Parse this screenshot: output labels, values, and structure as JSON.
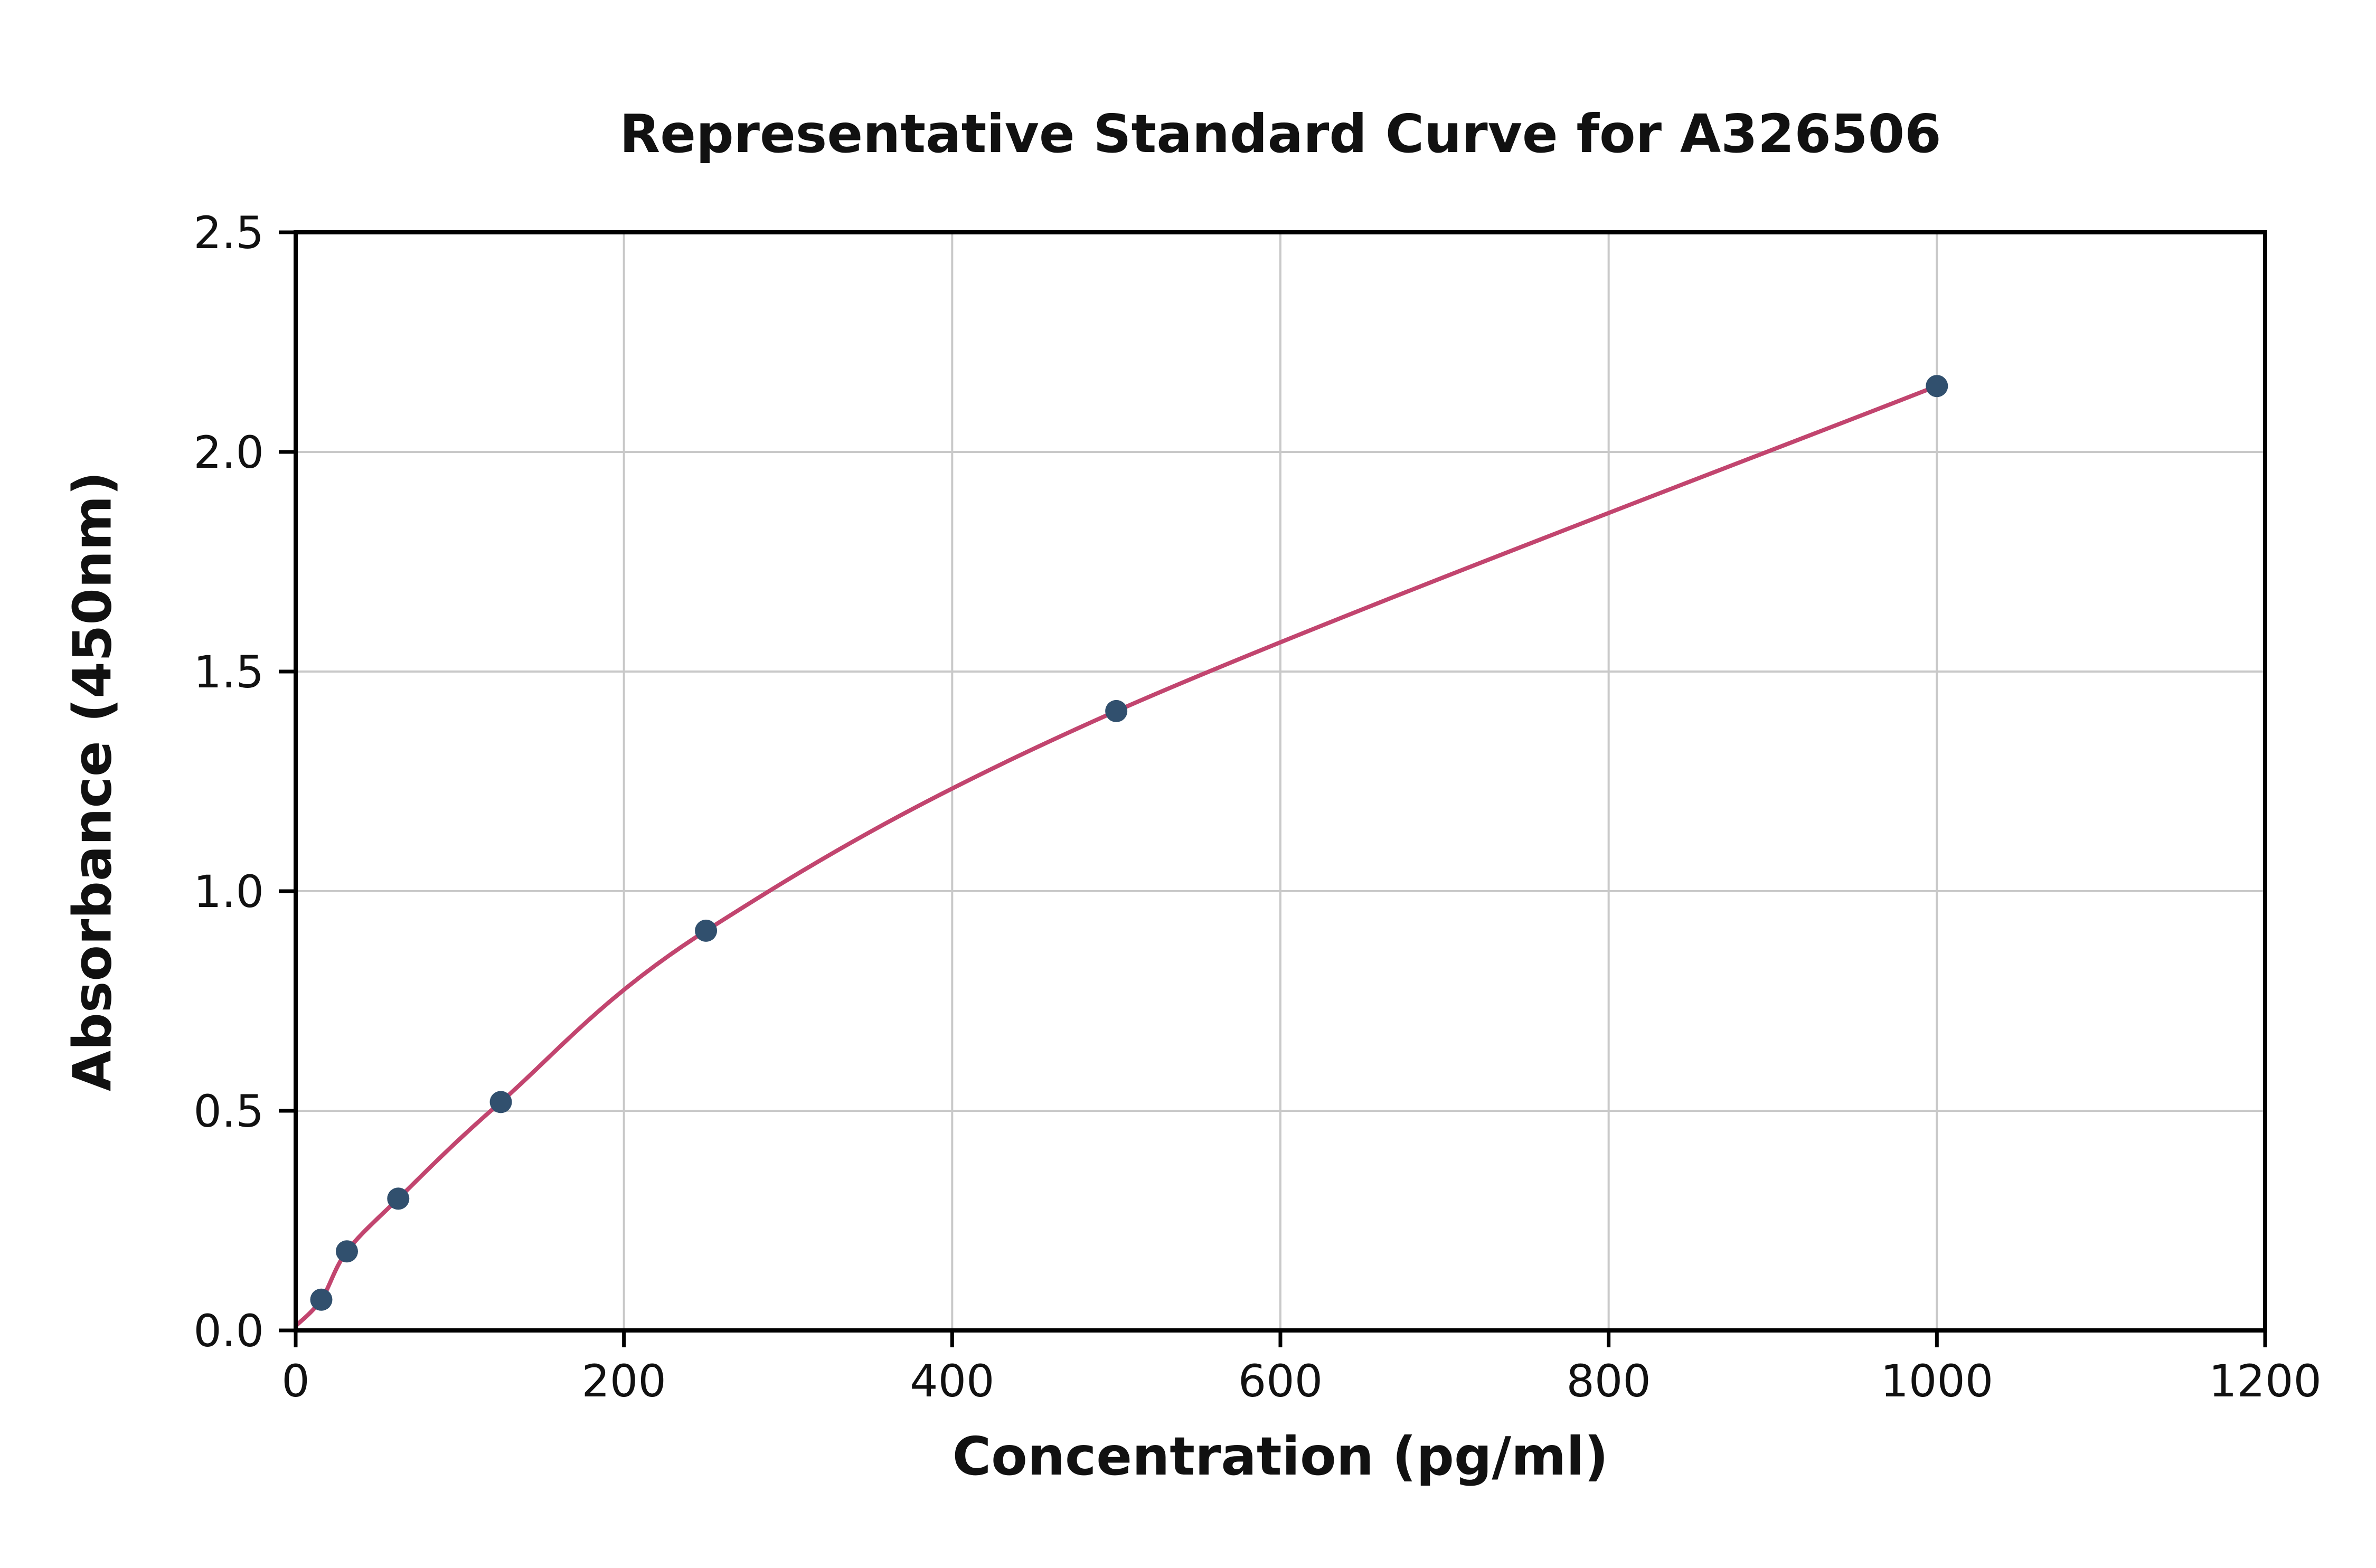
{
  "chart_data": {
    "type": "scatter",
    "title": "Representative Standard Curve for A326506",
    "xlabel": "Concentration (pg/ml)",
    "ylabel": "Absorbance (450nm)",
    "xlim": [
      0,
      1200
    ],
    "ylim": [
      0,
      2.5
    ],
    "xticks": [
      0,
      200,
      400,
      600,
      800,
      1000,
      1200
    ],
    "xtick_labels": [
      "0",
      "200",
      "400",
      "600",
      "800",
      "1000",
      "1200"
    ],
    "yticks": [
      0,
      0.5,
      1.0,
      1.5,
      2.0,
      2.5
    ],
    "ytick_labels": [
      "0.0",
      "0.5",
      "1.0",
      "1.5",
      "2.0",
      "2.5"
    ],
    "grid": true,
    "legend": null,
    "points": {
      "x": [
        15.6,
        31.2,
        62.5,
        125,
        250,
        500,
        1000
      ],
      "y": [
        0.07,
        0.18,
        0.3,
        0.52,
        0.91,
        1.41,
        2.15
      ]
    },
    "curve_start": [
      0,
      0.01
    ],
    "colors": {
      "point": "#31506e",
      "curve": "#c2456f",
      "grid": "#c9c9c9",
      "axis": "#000000",
      "text": "#111111",
      "background": "#ffffff"
    }
  }
}
